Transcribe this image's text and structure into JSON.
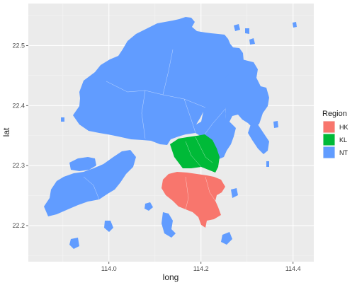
{
  "chart_data": {
    "type": "map",
    "xlabel": "long",
    "ylabel": "lat",
    "xlim": [
      113.825,
      114.445
    ],
    "ylim": [
      22.14,
      22.57
    ],
    "x_ticks": [
      114.0,
      114.2,
      114.4
    ],
    "x_tick_labels": [
      "114.0",
      "114.2",
      "114.4"
    ],
    "y_ticks": [
      22.2,
      22.3,
      22.4,
      22.5
    ],
    "y_tick_labels": [
      "22.2",
      "22.3",
      "22.4",
      "22.5"
    ],
    "grid": true,
    "legend": {
      "title": "Region",
      "placement": "right",
      "entries": [
        {
          "key": "HK",
          "label": "HK",
          "color": "#F8766D"
        },
        {
          "key": "KL",
          "label": "KL",
          "color": "#00BA38"
        },
        {
          "key": "NT",
          "label": "NT",
          "color": "#619CFF"
        }
      ]
    },
    "colors": {
      "panel": "#EBEBEB",
      "grid_major": "#FFFFFF",
      "grid_minor": "#F4F4F4",
      "region_border": "#FFFFFF"
    }
  }
}
